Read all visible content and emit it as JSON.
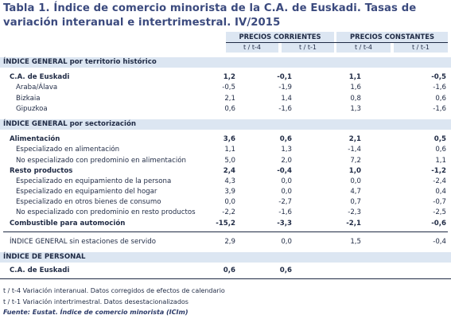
{
  "title": "Tabla 1. Índice de comercio minorista de la C.A. de Euskadi. Tasas de variación interanual e intertrimestral. IV/2015",
  "header": {
    "group1": "PRECIOS CORRIENTES",
    "group2": "PRECIOS CONSTANTES",
    "sub": [
      "t / t-4",
      "t / t-1",
      "t / t-4",
      "t / t-1"
    ]
  },
  "sections": {
    "territorio": "ÍNDICE GENERAL por territorio histórico",
    "sectorizacion": "ÍNDICE GENERAL por sectorización",
    "personal": "ÍNDICE DE PERSONAL"
  },
  "rows": {
    "cae": {
      "label": "C.A. de Euskadi",
      "v": [
        "1,2",
        "-0,1",
        "1,1",
        "-0,5"
      ]
    },
    "araba": {
      "label": "Araba/Álava",
      "v": [
        "-0,5",
        "-1,9",
        "1,6",
        "-1,6"
      ]
    },
    "bizkaia": {
      "label": "Bizkaia",
      "v": [
        "2,1",
        "1,4",
        "0,8",
        "0,6"
      ]
    },
    "gipuzkoa": {
      "label": "Gipuzkoa",
      "v": [
        "0,6",
        "-1,6",
        "1,3",
        "-1,6"
      ]
    },
    "alimentacion": {
      "label": "Alimentación",
      "v": [
        "3,6",
        "0,6",
        "2,1",
        "0,5"
      ]
    },
    "esp_alim": {
      "label": "Especializado en alimentación",
      "v": [
        "1,1",
        "1,3",
        "-1,4",
        "0,6"
      ]
    },
    "noesp_alim": {
      "label": "No especializado con predominio en alimentación",
      "v": [
        "5,0",
        "2,0",
        "7,2",
        "1,1"
      ]
    },
    "resto": {
      "label": "Resto productos",
      "v": [
        "2,4",
        "-0,4",
        "1,0",
        "-1,2"
      ]
    },
    "esp_persona": {
      "label": "Especializado en equipamiento de la persona",
      "v": [
        "4,3",
        "0,0",
        "0,0",
        "-2,4"
      ]
    },
    "esp_hogar": {
      "label": "Especializado en equipamiento del hogar",
      "v": [
        "3,9",
        "0,0",
        "4,7",
        "0,4"
      ]
    },
    "esp_otros": {
      "label": "Especializado en otros bienes de consumo",
      "v": [
        "0,0",
        "-2,7",
        "0,7",
        "-0,7"
      ]
    },
    "noesp_resto": {
      "label": "No especializado con predominio en resto productos",
      "v": [
        "-2,2",
        "-1,6",
        "-2,3",
        "-2,5"
      ]
    },
    "combustible": {
      "label": "Combustible para automoción",
      "v": [
        "-15,2",
        "-3,3",
        "-2,1",
        "-0,6"
      ]
    },
    "sin_est": {
      "label": "ÍNDICE GENERAL sin estaciones de servido",
      "v": [
        "2,9",
        "0,0",
        "1,5",
        "-0,4"
      ]
    },
    "personal_cae": {
      "label": "C.A. de Euskadi",
      "v": [
        "0,6",
        "0,6"
      ]
    }
  },
  "notes": {
    "n1": "t / t-4 Variación interanual. Datos corregidos de efectos de calendario",
    "n2": "t / t-1 Variación intertrimestral. Datos desestacionalizados",
    "source": "Fuente: Eustat. Índice de comercio minorista (ICIm)"
  }
}
